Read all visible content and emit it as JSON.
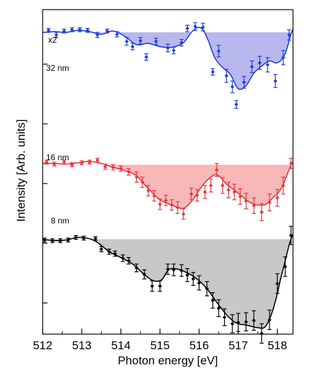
{
  "chart_data": {
    "type": "line",
    "xlabel": "Photon energy [eV]",
    "ylabel": "Intensity [Arb. units]",
    "xlim": [
      512,
      518.4
    ],
    "x_ticks": [
      512,
      513,
      514,
      515,
      516,
      517,
      518
    ],
    "x_tick_labels": [
      "512",
      "513",
      "514",
      "515",
      "516",
      "517",
      "518"
    ],
    "ylim": [
      0,
      500
    ],
    "grid": false,
    "legend": "none",
    "annotations": [
      "x2",
      "32 nm",
      "16 nm",
      "8 nm"
    ],
    "series": [
      {
        "name": "32 nm",
        "color": "#1f3fd6",
        "fill_color": "#b8b8ee",
        "baseline": 465,
        "points": [
          {
            "x": 512.15,
            "y": 468,
            "err": 3
          },
          {
            "x": 512.35,
            "y": 461,
            "err": 4
          },
          {
            "x": 512.55,
            "y": 467,
            "err": 3
          },
          {
            "x": 512.75,
            "y": 469,
            "err": 3
          },
          {
            "x": 512.95,
            "y": 469,
            "err": 3
          },
          {
            "x": 513.15,
            "y": 468,
            "err": 3
          },
          {
            "x": 513.4,
            "y": 461,
            "err": 4
          },
          {
            "x": 513.65,
            "y": 467,
            "err": 3
          },
          {
            "x": 513.9,
            "y": 462,
            "err": 4
          },
          {
            "x": 514.15,
            "y": 451,
            "err": 6
          },
          {
            "x": 514.3,
            "y": 443,
            "err": 5
          },
          {
            "x": 514.5,
            "y": 452,
            "err": 5
          },
          {
            "x": 514.65,
            "y": 427,
            "err": 5
          },
          {
            "x": 514.9,
            "y": 451,
            "err": 5
          },
          {
            "x": 515.2,
            "y": 441,
            "err": 6
          },
          {
            "x": 515.35,
            "y": 437,
            "err": 5
          },
          {
            "x": 515.55,
            "y": 449,
            "err": 5
          },
          {
            "x": 515.7,
            "y": 471,
            "err": 5
          },
          {
            "x": 515.9,
            "y": 474,
            "err": 6
          },
          {
            "x": 516.1,
            "y": 473,
            "err": 6
          },
          {
            "x": 516.35,
            "y": 404,
            "err": 5
          },
          {
            "x": 516.5,
            "y": 436,
            "err": 9
          },
          {
            "x": 516.7,
            "y": 398,
            "err": 10
          },
          {
            "x": 516.85,
            "y": 381,
            "err": 9
          },
          {
            "x": 516.95,
            "y": 354,
            "err": 6
          },
          {
            "x": 517.15,
            "y": 388,
            "err": 9
          },
          {
            "x": 517.35,
            "y": 412,
            "err": 9
          },
          {
            "x": 517.55,
            "y": 418,
            "err": 10
          },
          {
            "x": 517.75,
            "y": 415,
            "err": 11
          },
          {
            "x": 517.95,
            "y": 390,
            "err": 10
          },
          {
            "x": 518.15,
            "y": 426,
            "err": 11
          },
          {
            "x": 518.3,
            "y": 461,
            "err": 8
          }
        ],
        "fit": [
          [
            512.0,
            465
          ],
          [
            512.3,
            466
          ],
          [
            512.6,
            465
          ],
          [
            512.9,
            468
          ],
          [
            513.2,
            466
          ],
          [
            513.5,
            462
          ],
          [
            513.8,
            467
          ],
          [
            514.1,
            459
          ],
          [
            514.4,
            446
          ],
          [
            514.7,
            448
          ],
          [
            515.0,
            443
          ],
          [
            515.3,
            442
          ],
          [
            515.6,
            449
          ],
          [
            515.85,
            468
          ],
          [
            516.05,
            472
          ],
          [
            516.2,
            457
          ],
          [
            516.4,
            426
          ],
          [
            516.6,
            411
          ],
          [
            516.8,
            400
          ],
          [
            517.0,
            378
          ],
          [
            517.2,
            383
          ],
          [
            517.4,
            402
          ],
          [
            517.6,
            413
          ],
          [
            517.8,
            421
          ],
          [
            518.0,
            418
          ],
          [
            518.2,
            432
          ],
          [
            518.4,
            470
          ]
        ]
      },
      {
        "name": "16 nm",
        "color": "#e8343a",
        "fill_color": "#f8b8b8",
        "baseline": 261,
        "points": [
          {
            "x": 512.1,
            "y": 265,
            "err": 3
          },
          {
            "x": 512.3,
            "y": 262,
            "err": 3
          },
          {
            "x": 512.55,
            "y": 265,
            "err": 3
          },
          {
            "x": 512.75,
            "y": 261,
            "err": 3
          },
          {
            "x": 513.0,
            "y": 264,
            "err": 3
          },
          {
            "x": 513.2,
            "y": 265,
            "err": 3
          },
          {
            "x": 513.4,
            "y": 268,
            "err": 3
          },
          {
            "x": 513.6,
            "y": 258,
            "err": 4
          },
          {
            "x": 513.8,
            "y": 257,
            "err": 4
          },
          {
            "x": 514.0,
            "y": 255,
            "err": 4
          },
          {
            "x": 514.2,
            "y": 250,
            "err": 5
          },
          {
            "x": 514.4,
            "y": 242,
            "err": 8
          },
          {
            "x": 514.55,
            "y": 234,
            "err": 8
          },
          {
            "x": 514.7,
            "y": 221,
            "err": 8
          },
          {
            "x": 514.85,
            "y": 213,
            "err": 8
          },
          {
            "x": 515.0,
            "y": 200,
            "err": 8
          },
          {
            "x": 515.15,
            "y": 206,
            "err": 8
          },
          {
            "x": 515.3,
            "y": 199,
            "err": 8
          },
          {
            "x": 515.45,
            "y": 195,
            "err": 9
          },
          {
            "x": 515.6,
            "y": 185,
            "err": 8
          },
          {
            "x": 515.8,
            "y": 216,
            "err": 9
          },
          {
            "x": 515.95,
            "y": 214,
            "err": 9
          },
          {
            "x": 516.15,
            "y": 219,
            "err": 10
          },
          {
            "x": 516.3,
            "y": 229,
            "err": 10
          },
          {
            "x": 516.45,
            "y": 253,
            "err": 10
          },
          {
            "x": 516.6,
            "y": 229,
            "err": 12
          },
          {
            "x": 516.75,
            "y": 222,
            "err": 12
          },
          {
            "x": 516.9,
            "y": 219,
            "err": 12
          },
          {
            "x": 517.05,
            "y": 212,
            "err": 12
          },
          {
            "x": 517.2,
            "y": 205,
            "err": 12
          },
          {
            "x": 517.4,
            "y": 198,
            "err": 12
          },
          {
            "x": 517.6,
            "y": 188,
            "err": 13
          },
          {
            "x": 517.8,
            "y": 203,
            "err": 13
          },
          {
            "x": 518.0,
            "y": 210,
            "err": 13
          },
          {
            "x": 518.15,
            "y": 229,
            "err": 13
          },
          {
            "x": 518.35,
            "y": 263,
            "err": 8
          }
        ],
        "fit": [
          [
            512.0,
            263
          ],
          [
            512.3,
            263
          ],
          [
            512.6,
            262
          ],
          [
            512.9,
            264
          ],
          [
            513.2,
            266
          ],
          [
            513.5,
            263
          ],
          [
            513.8,
            257
          ],
          [
            514.1,
            252
          ],
          [
            514.4,
            244
          ],
          [
            514.7,
            224
          ],
          [
            515.0,
            207
          ],
          [
            515.3,
            199
          ],
          [
            515.6,
            194
          ],
          [
            515.85,
            208
          ],
          [
            516.1,
            230
          ],
          [
            516.35,
            244
          ],
          [
            516.5,
            244
          ],
          [
            516.7,
            231
          ],
          [
            516.9,
            222
          ],
          [
            517.1,
            212
          ],
          [
            517.3,
            203
          ],
          [
            517.5,
            199
          ],
          [
            517.7,
            200
          ],
          [
            517.9,
            211
          ],
          [
            518.1,
            225
          ],
          [
            518.4,
            265
          ]
        ]
      },
      {
        "name": "8 nm",
        "color": "#000000",
        "fill_color": "#c8c8c8",
        "baseline": 146,
        "points": [
          {
            "x": 512.05,
            "y": 145,
            "err": 3
          },
          {
            "x": 512.25,
            "y": 144,
            "err": 3
          },
          {
            "x": 512.45,
            "y": 144,
            "err": 3
          },
          {
            "x": 512.65,
            "y": 145,
            "err": 3
          },
          {
            "x": 512.85,
            "y": 149,
            "err": 3
          },
          {
            "x": 513.05,
            "y": 148,
            "err": 3
          },
          {
            "x": 513.35,
            "y": 147,
            "err": 3
          },
          {
            "x": 513.5,
            "y": 131,
            "err": 4
          },
          {
            "x": 513.7,
            "y": 127,
            "err": 4
          },
          {
            "x": 513.85,
            "y": 124,
            "err": 4
          },
          {
            "x": 514.05,
            "y": 117,
            "err": 5
          },
          {
            "x": 514.2,
            "y": 113,
            "err": 5
          },
          {
            "x": 514.4,
            "y": 102,
            "err": 6
          },
          {
            "x": 514.6,
            "y": 92,
            "err": 7
          },
          {
            "x": 514.8,
            "y": 74,
            "err": 8
          },
          {
            "x": 515.0,
            "y": 74,
            "err": 8
          },
          {
            "x": 515.2,
            "y": 100,
            "err": 8
          },
          {
            "x": 515.35,
            "y": 99,
            "err": 9
          },
          {
            "x": 515.55,
            "y": 98,
            "err": 9
          },
          {
            "x": 515.7,
            "y": 91,
            "err": 10
          },
          {
            "x": 515.85,
            "y": 85,
            "err": 10
          },
          {
            "x": 516.0,
            "y": 79,
            "err": 11
          },
          {
            "x": 516.2,
            "y": 70,
            "err": 11
          },
          {
            "x": 516.35,
            "y": 52,
            "err": 12
          },
          {
            "x": 516.5,
            "y": 40,
            "err": 13
          },
          {
            "x": 516.65,
            "y": 26,
            "err": 13
          },
          {
            "x": 516.85,
            "y": 16,
            "err": 14
          },
          {
            "x": 517.0,
            "y": 18,
            "err": 14
          },
          {
            "x": 517.2,
            "y": 19,
            "err": 14
          },
          {
            "x": 517.4,
            "y": 21,
            "err": 15
          },
          {
            "x": 517.6,
            "y": 1,
            "err": 15
          },
          {
            "x": 517.8,
            "y": 22,
            "err": 15
          },
          {
            "x": 518.0,
            "y": 78,
            "err": 15
          },
          {
            "x": 518.2,
            "y": 104,
            "err": 15
          },
          {
            "x": 518.35,
            "y": 152,
            "err": 14
          }
        ],
        "fit": [
          [
            512.0,
            146
          ],
          [
            512.3,
            144
          ],
          [
            512.6,
            145
          ],
          [
            512.9,
            149
          ],
          [
            513.2,
            147
          ],
          [
            513.4,
            141
          ],
          [
            513.7,
            127
          ],
          [
            514.0,
            118
          ],
          [
            514.3,
            108
          ],
          [
            514.6,
            92
          ],
          [
            514.85,
            82
          ],
          [
            515.05,
            84
          ],
          [
            515.2,
            98
          ],
          [
            515.35,
            101
          ],
          [
            515.6,
            97
          ],
          [
            515.9,
            87
          ],
          [
            516.2,
            70
          ],
          [
            516.5,
            45
          ],
          [
            516.8,
            24
          ],
          [
            517.0,
            16
          ],
          [
            517.2,
            14
          ],
          [
            517.5,
            10
          ],
          [
            517.7,
            12
          ],
          [
            517.9,
            40
          ],
          [
            518.1,
            90
          ],
          [
            518.4,
            154
          ]
        ]
      }
    ]
  }
}
